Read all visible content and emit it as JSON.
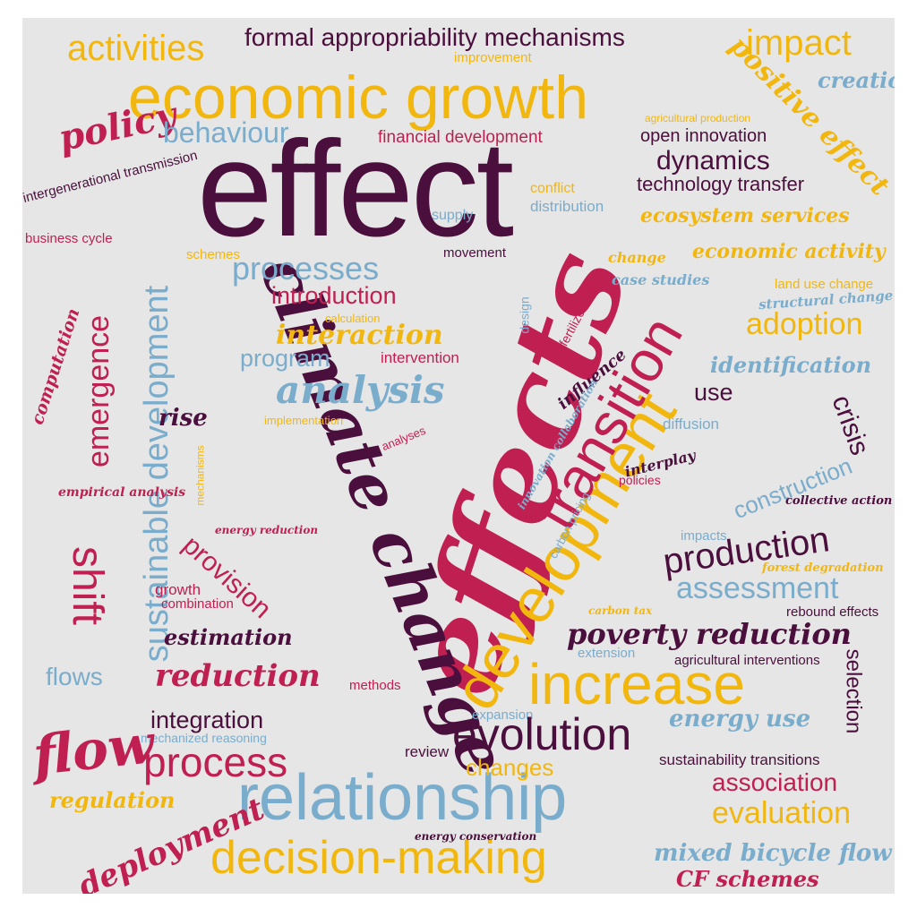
{
  "colors": {
    "background": "#e6e6e6",
    "yellow": "#f2b70f",
    "crimson": "#c01f51",
    "plum": "#4a0f3c",
    "blue": "#7aaccc"
  },
  "words": {
    "effect": "effect",
    "effects": "effects",
    "economic_growth": "economic growth",
    "climate_change": "climate change",
    "development": "development",
    "relationship": "relationship",
    "transition": "transition",
    "increase": "increase",
    "decision_making": "decision-making",
    "sustainable_development": "sustainable development",
    "activities": "activities",
    "formal_appropriability_mechanisms": "formal appropriability mechanisms",
    "impact": "impact",
    "improvement": "improvement",
    "positive_effect": "positive effect",
    "creation": "creation",
    "policy": "policy",
    "behaviour": "behaviour",
    "financial_development": "financial development",
    "agricultural_production": "agricultural production",
    "open_innovation": "open innovation",
    "dynamics": "dynamics",
    "technology_transfer": "technology transfer",
    "intergenerational_transmission": "intergenerational transmission",
    "conflict": "conflict",
    "distribution": "distribution",
    "supply": "supply",
    "ecosystem_services": "ecosystem services",
    "business_cycle": "business cycle",
    "schemes": "schemes",
    "movement": "movement",
    "economic_activity": "economic activity",
    "change": "change",
    "processes": "processes",
    "land_use_change": "land use change",
    "case_studies": "case studies",
    "structural_change": "structural change",
    "introduction": "introduction",
    "fertilizer_use": "fertilizer use",
    "design": "design",
    "adoption": "adoption",
    "calculation": "calculation",
    "interaction": "interaction",
    "emergence": "emergence",
    "computation": "computation",
    "program": "program",
    "intervention": "intervention",
    "identification": "identification",
    "influence": "influence",
    "analysis": "analysis",
    "use": "use",
    "crisis": "crisis",
    "rise": "rise",
    "implementation": "implementation",
    "analyses": "analyses",
    "diffusion": "diffusion",
    "innovation_collaboration": "innovation collaboration",
    "interplay": "interplay",
    "mechanisms": "mechanisms",
    "policies": "policies",
    "construction": "construction",
    "empirical_analysis": "empirical analysis",
    "collective_action": "collective action",
    "carbon_pricing": "carbon pricing",
    "shift": "shift",
    "energy_reduction": "energy reduction",
    "provision": "provision",
    "impacts": "impacts",
    "production": "production",
    "forest_degradation": "forest degradation",
    "growth": "growth",
    "assessment": "assessment",
    "combination": "combination",
    "carbon_tax": "carbon tax",
    "rebound_effects": "rebound effects",
    "estimation": "estimation",
    "poverty_reduction": "poverty reduction",
    "selection": "selection",
    "extension": "extension",
    "agricultural_interventions": "agricultural interventions",
    "flows": "flows",
    "reduction": "reduction",
    "methods": "methods",
    "expansion": "expansion",
    "energy_use": "energy use",
    "integration": "integration",
    "evolution": "evolution",
    "mechanized_reasoning": "mechanized reasoning",
    "flow": "flow",
    "review": "review",
    "process": "process",
    "changes": "changes",
    "sustainability_transitions": "sustainability transitions",
    "association": "association",
    "regulation": "regulation",
    "evaluation": "evaluation",
    "deployment": "deployment",
    "energy_conservation": "energy conservation",
    "mixed_bicycle_flow": "mixed bicycle flow",
    "cf_schemes": "CF schemes"
  }
}
